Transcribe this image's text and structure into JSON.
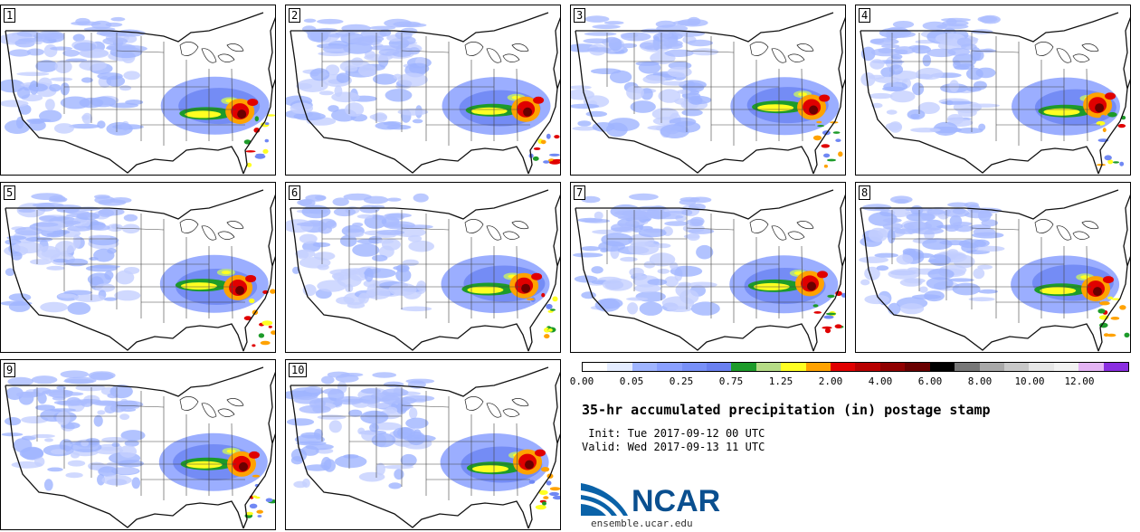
{
  "panels": [
    "1",
    "2",
    "3",
    "4",
    "5",
    "6",
    "7",
    "8",
    "9",
    "10"
  ],
  "colorbar": {
    "colors": [
      "#ffffff",
      "#e4ecff",
      "#9fb4ff",
      "#8aa0ff",
      "#7890f8",
      "#6a80f0",
      "#1d9b2a",
      "#b5dc86",
      "#ffff22",
      "#ffa200",
      "#e00000",
      "#b80000",
      "#900000",
      "#6a0000",
      "#000000",
      "#777777",
      "#a8a8a8",
      "#c8c8c8",
      "#e6e6e6",
      "#f2f2f2",
      "#e4b4f4",
      "#8a2ee0"
    ],
    "labels": [
      "0.00",
      "0.05",
      "0.25",
      "0.75",
      "1.25",
      "2.00",
      "4.00",
      "6.00",
      "8.00",
      "10.00",
      "12.00"
    ]
  },
  "title": "35-hr accumulated precipitation (in) postage stamp",
  "init": " Init: Tue 2017-09-12 00 UTC",
  "valid": "Valid: Wed 2017-09-13 11 UTC",
  "logo": {
    "name": "NCAR",
    "url": "ensemble.ucar.edu"
  }
}
